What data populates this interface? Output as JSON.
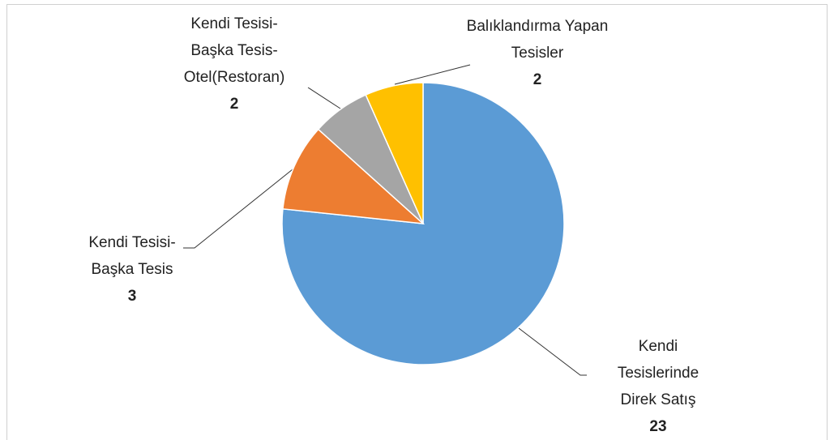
{
  "chart_data": {
    "type": "pie",
    "categories": [
      "Kendi Tesislerinde Direk Satış",
      "Kendi Tesisi-Başka Tesis",
      "Kendi Tesisi-Başka Tesis-Otel(Restoran)",
      "Balıklandırma Yapan Tesisler"
    ],
    "values": [
      23,
      3,
      2,
      2
    ],
    "colors": [
      "#5b9bd5",
      "#ed7d31",
      "#a5a5a5",
      "#ffc000"
    ]
  }
}
